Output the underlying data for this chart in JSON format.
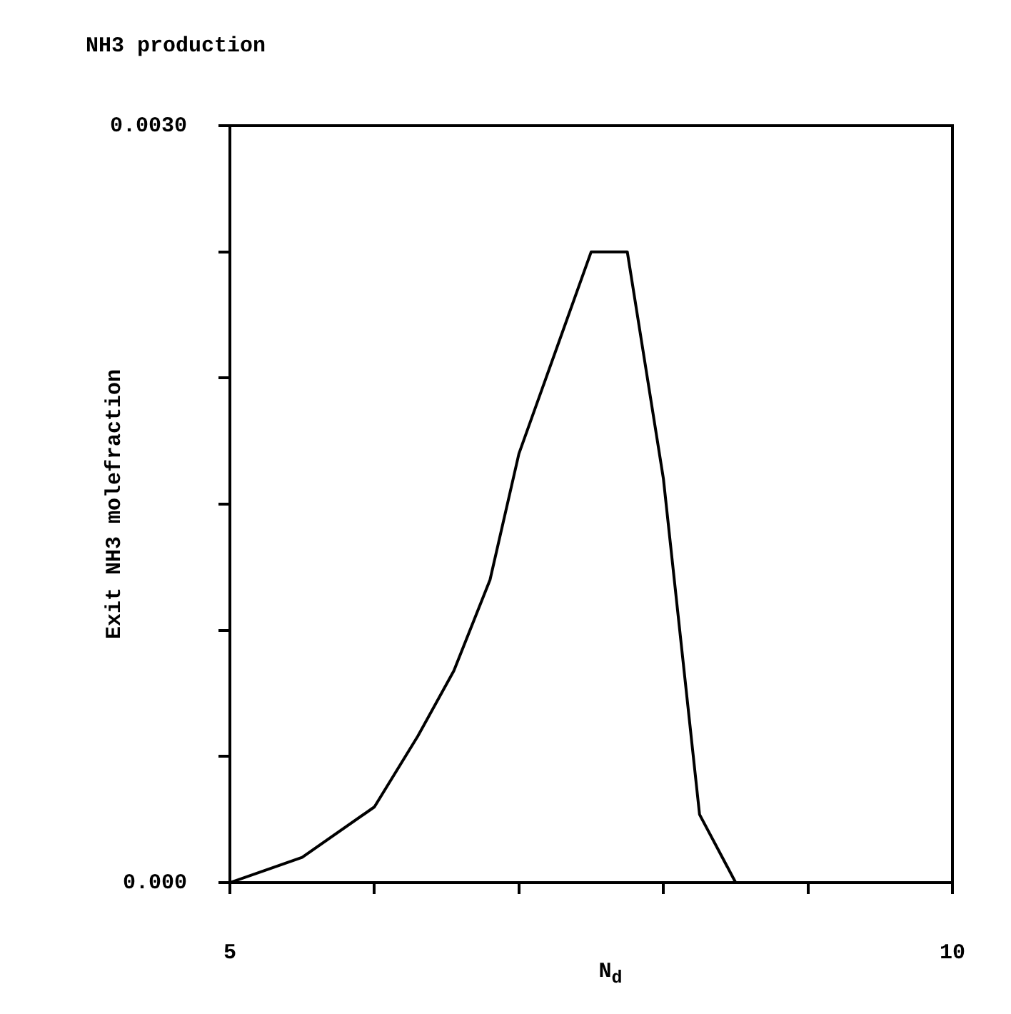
{
  "chart_data": {
    "type": "line",
    "title": "NH3 production",
    "xlabel": "N$_{d}$",
    "ylabel": "Exit NH3 molefraction",
    "x": [
      5,
      5.25,
      5.5,
      6,
      6.3,
      6.55,
      6.8,
      7,
      7.25,
      7.5,
      7.75,
      8,
      8.25,
      8.5
    ],
    "series": [
      {
        "color": "#000000",
        "values": [
          0,
          5e-05,
          0.0001,
          0.0003,
          0.00058,
          0.00084,
          0.0012,
          0.0017,
          0.0021,
          0.0025,
          0.0025,
          0.0016,
          0.00027,
          0
        ]
      }
    ],
    "xlim": [
      5,
      10
    ],
    "xticks": [
      5,
      {
        "value": 6,
        "label": null
      },
      {
        "value": 7,
        "label": null
      },
      {
        "value": 8,
        "label": null
      },
      {
        "value": 9,
        "label": null
      },
      10
    ],
    "ylim": [
      0,
      0.003
    ],
    "yticks": [
      {
        "value": 0,
        "label": "0.000"
      },
      {
        "value": 0.0005,
        "label": null
      },
      {
        "value": 0.001,
        "label": null
      },
      {
        "value": 0.0015,
        "label": null
      },
      {
        "value": 0.002,
        "label": null
      },
      {
        "value": 0.0025,
        "label": null
      },
      {
        "value": 0.003,
        "label": "0.0030"
      }
    ],
    "grid": false,
    "legend": false,
    "marker": "none",
    "line_style": "solid"
  }
}
